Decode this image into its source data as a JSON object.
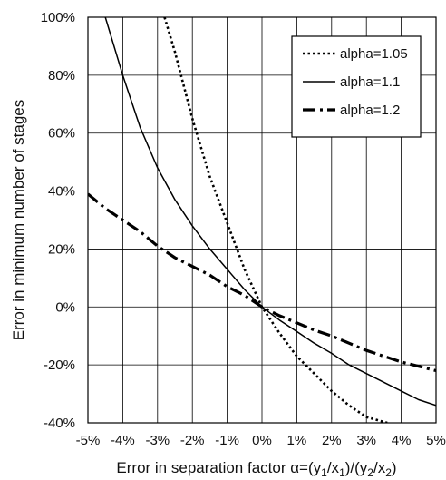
{
  "chart_data": {
    "type": "line",
    "xlabel_main": "Error in separation factor ",
    "xlabel_formula": [
      "α=(y",
      "1",
      "/x",
      "1",
      ")/(y",
      "2",
      "/x",
      "2",
      ")"
    ],
    "ylabel": "Error in minimum number of stages",
    "xlim": [
      -5,
      5
    ],
    "ylim": [
      -40,
      100
    ],
    "xticks": [
      -5,
      -4,
      -3,
      -2,
      -1,
      0,
      1,
      2,
      3,
      4,
      5
    ],
    "xtick_labels": [
      "-5%",
      "-4%",
      "-3%",
      "-2%",
      "-1%",
      "0%",
      "1%",
      "2%",
      "3%",
      "4%",
      "5%"
    ],
    "yticks": [
      -40,
      -20,
      0,
      20,
      40,
      60,
      80,
      100
    ],
    "ytick_labels": [
      "-40%",
      "-20%",
      "0%",
      "20%",
      "40%",
      "60%",
      "80%",
      "100%"
    ],
    "grid": "vertical and horizontal",
    "legend_position": "top-right",
    "series": [
      {
        "name": "alpha=1.05",
        "style": "dotted",
        "x": [
          -2.8,
          -2.5,
          -2,
          -1.5,
          -1,
          -0.5,
          0,
          0.5,
          1,
          1.5,
          2,
          2.5,
          3,
          3.6
        ],
        "y": [
          100,
          88,
          65,
          45,
          29,
          13,
          0,
          -9,
          -17,
          -23,
          -29,
          -34,
          -38,
          -40
        ]
      },
      {
        "name": "alpha=1.1",
        "style": "solid",
        "x": [
          -4.5,
          -4,
          -3.5,
          -3,
          -2.5,
          -2,
          -1.5,
          -1,
          -0.5,
          0,
          0.5,
          1,
          1.5,
          2,
          2.5,
          3,
          3.5,
          4,
          4.5,
          5
        ],
        "y": [
          100,
          80,
          62,
          48,
          37,
          28,
          20,
          13,
          6,
          0,
          -4.5,
          -8.5,
          -12.5,
          -16,
          -20,
          -23,
          -26,
          -29,
          -32,
          -34
        ]
      },
      {
        "name": "alpha=1.2",
        "style": "dash-dot",
        "x": [
          -5,
          -4.5,
          -4,
          -3.5,
          -3,
          -2.5,
          -2,
          -1.5,
          -1,
          -0.5,
          0,
          0.5,
          1,
          1.5,
          2,
          2.5,
          3,
          3.5,
          4,
          4.5,
          5
        ],
        "y": [
          39,
          34,
          30,
          26,
          21,
          17,
          14,
          11,
          7,
          4,
          0,
          -3,
          -5.5,
          -8,
          -10,
          -12.5,
          -15,
          -17,
          -19,
          -20.5,
          -22
        ]
      }
    ]
  },
  "colors": {
    "line": "#000000",
    "grid": "#000000",
    "background": "#ffffff"
  }
}
